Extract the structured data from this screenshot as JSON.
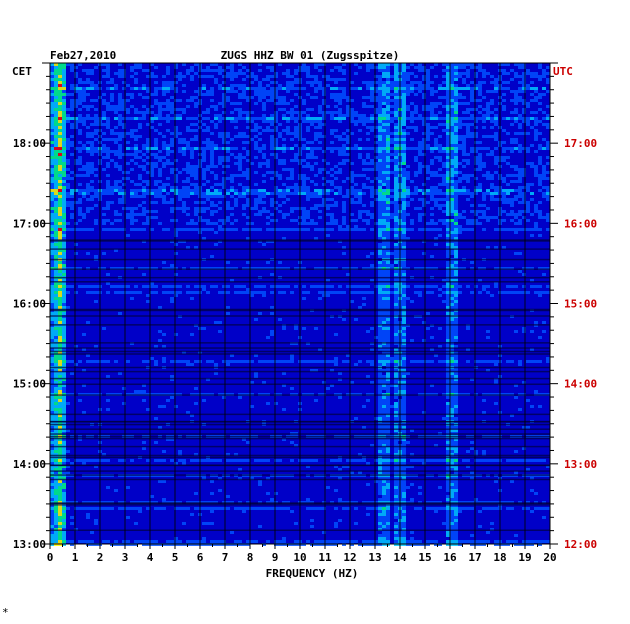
{
  "header": {
    "date": "Feb27,2010",
    "station": "ZUGS HHZ BW 01 (Zugsspitze)"
  },
  "axes": {
    "left_zone": "CET",
    "right_zone": "UTC",
    "xlabel": "FREQUENCY (HZ)"
  },
  "colors": {
    "background": "#0000c8",
    "axis": "#000000",
    "utc_label": "#cc0000"
  },
  "footnote": "*",
  "chart_data": {
    "type": "heatmap",
    "title": "ZUGS HHZ BW 01 (Zugsspitze)",
    "subtitle": "Feb27,2010",
    "xlabel": "FREQUENCY (HZ)",
    "x_ticks": [
      "0",
      "1",
      "2",
      "3",
      "4",
      "5",
      "6",
      "7",
      "8",
      "9",
      "10",
      "11",
      "12",
      "13",
      "14",
      "15",
      "16",
      "17",
      "18",
      "19",
      "20"
    ],
    "xlim": [
      0,
      20
    ],
    "left_axis": {
      "label": "CET",
      "ticks": [
        "18:00",
        "17:00",
        "16:00",
        "15:00",
        "14:00",
        "13:00"
      ],
      "tick_hours": [
        18,
        17,
        16,
        15,
        14,
        13
      ]
    },
    "right_axis": {
      "label": "UTC",
      "ticks": [
        "17:00",
        "16:00",
        "15:00",
        "14:00",
        "13:00",
        "12:00"
      ],
      "tick_hours": [
        17,
        16,
        15,
        14,
        13,
        12
      ]
    },
    "time_range_utc_hours": [
      12,
      18
    ],
    "strong_bands_hz": [
      0.3,
      13.3,
      13.9,
      16.0
    ],
    "colormap": [
      "#0000c8",
      "#0050ff",
      "#00c8ff",
      "#00ff80",
      "#ffff00",
      "#ff0000"
    ]
  }
}
